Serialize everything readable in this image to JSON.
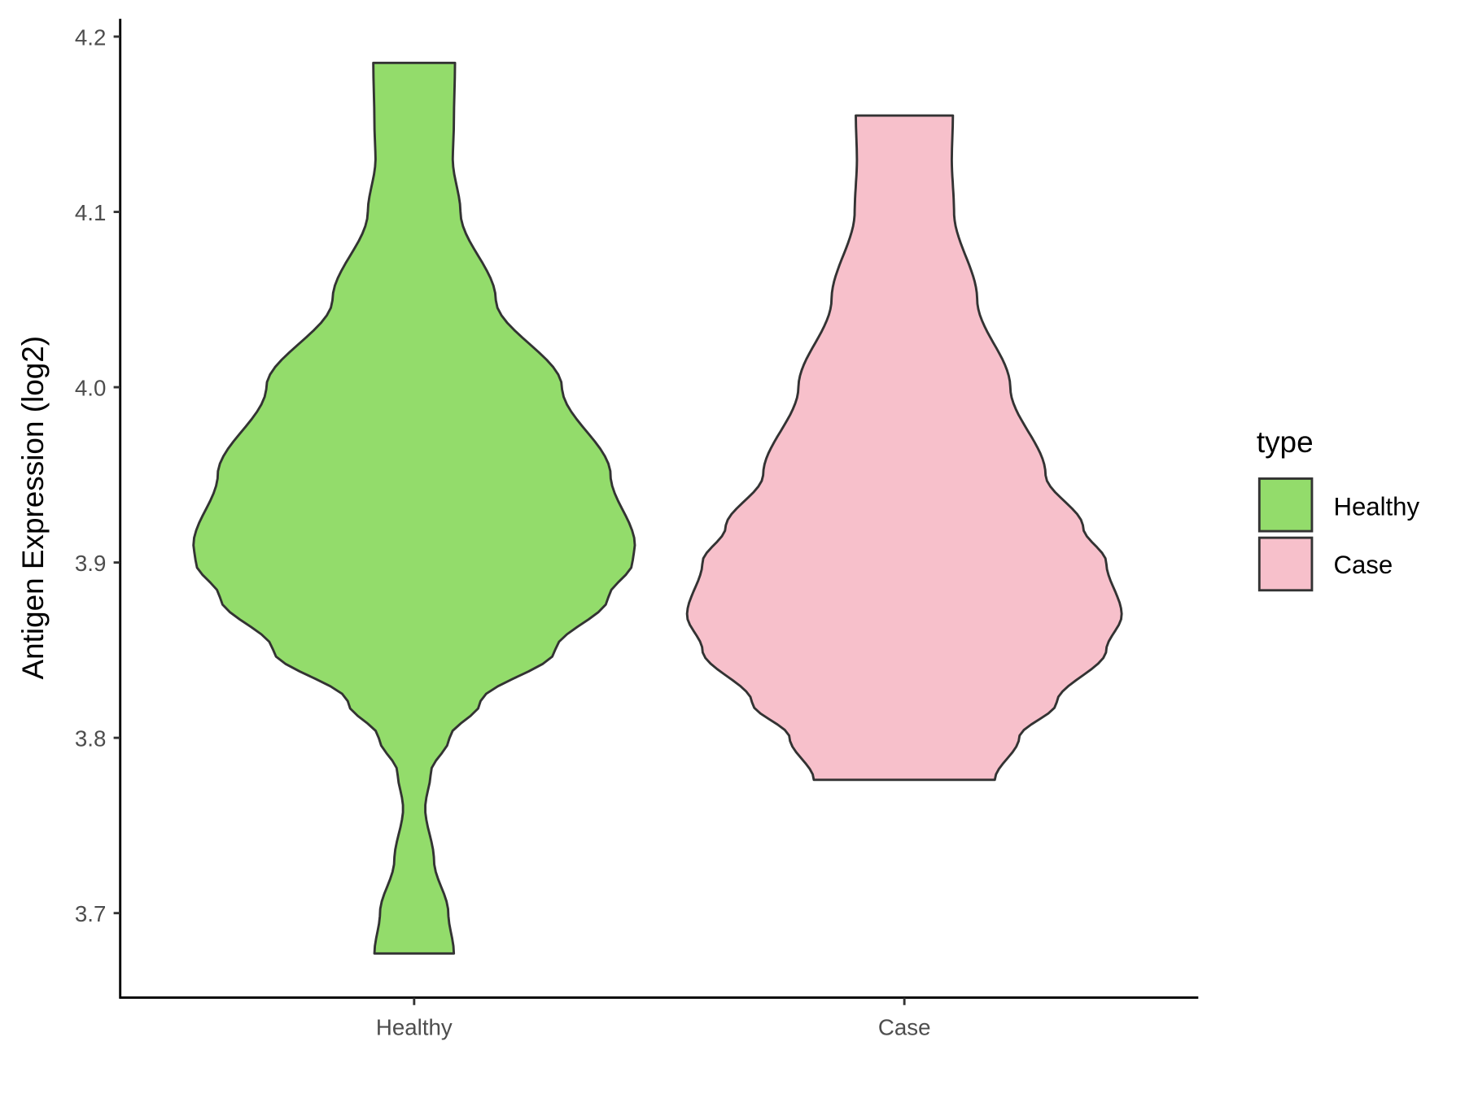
{
  "chart_data": {
    "type": "violin",
    "title": "",
    "xlabel": "",
    "ylabel": "Antigen Expression (log2)",
    "categories": [
      "Healthy",
      "Case"
    ],
    "yticks": [
      "3.7",
      "3.8",
      "3.9",
      "4.0",
      "4.1",
      "4.2"
    ],
    "ylim": [
      3.65,
      4.21
    ],
    "grid": false,
    "legend": {
      "title": "type",
      "position": "right",
      "entries": [
        "Healthy",
        "Case"
      ]
    },
    "series": [
      {
        "category": "Healthy",
        "color": "#93DC6B",
        "min": 3.677,
        "max": 4.185,
        "profile": [
          [
            3.677,
            0.18
          ],
          [
            3.7,
            0.155
          ],
          [
            3.73,
            0.09
          ],
          [
            3.76,
            0.05
          ],
          [
            3.78,
            0.075
          ],
          [
            3.8,
            0.16
          ],
          [
            3.82,
            0.3
          ],
          [
            3.85,
            0.64
          ],
          [
            3.88,
            0.88
          ],
          [
            3.9,
            0.99
          ],
          [
            3.91,
            1.0
          ],
          [
            3.95,
            0.89
          ],
          [
            4.0,
            0.67
          ],
          [
            4.05,
            0.37
          ],
          [
            4.1,
            0.21
          ],
          [
            4.13,
            0.175
          ],
          [
            4.15,
            0.18
          ],
          [
            4.185,
            0.185
          ]
        ]
      },
      {
        "category": "Case",
        "color": "#F7C0CB",
        "min": 3.776,
        "max": 4.155,
        "profile": [
          [
            3.776,
            0.41
          ],
          [
            3.8,
            0.52
          ],
          [
            3.82,
            0.69
          ],
          [
            3.85,
            0.915
          ],
          [
            3.87,
            0.985
          ],
          [
            3.9,
            0.915
          ],
          [
            3.92,
            0.81
          ],
          [
            3.95,
            0.64
          ],
          [
            4.0,
            0.48
          ],
          [
            4.05,
            0.33
          ],
          [
            4.1,
            0.225
          ],
          [
            4.13,
            0.215
          ],
          [
            4.155,
            0.22
          ]
        ]
      }
    ],
    "outline_color": "#333333"
  }
}
